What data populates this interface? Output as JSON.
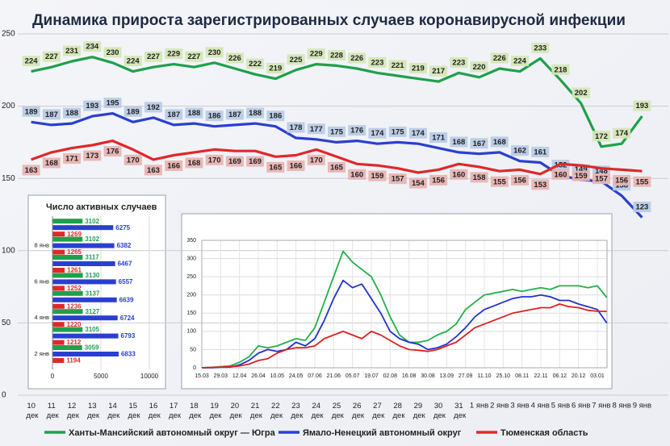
{
  "chart_data": [
    {
      "type": "line",
      "title": "Динамика прироста зарегистрированных случаев коронавирусной инфекции",
      "categories": [
        "10 дек",
        "11 дек",
        "12 дек",
        "13 дек",
        "14 дек",
        "15 дек",
        "16 дек",
        "17 дек",
        "18 дек",
        "19 дек",
        "20 дек",
        "21 дек",
        "22 дек",
        "23 дек",
        "24 дек",
        "25 дек",
        "26 дек",
        "27 дек",
        "28 дек",
        "29 дек",
        "30 дек",
        "31 дек",
        "1 янв",
        "2 янв",
        "3 янв",
        "4 янв",
        "5 янв",
        "6 янв",
        "7 янв",
        "8 янв",
        "9 янв"
      ],
      "series": [
        {
          "name": "Ханты-Мансийский автономный округ — Югра",
          "color": "#1fa04a",
          "label_color": "#d4e6b5",
          "values": [
            224,
            227,
            231,
            234,
            230,
            224,
            227,
            229,
            227,
            230,
            226,
            222,
            219,
            225,
            229,
            228,
            226,
            223,
            221,
            219,
            217,
            223,
            220,
            226,
            224,
            233,
            218,
            202,
            172,
            174,
            193
          ]
        },
        {
          "name": "Ямало-Ненецкий автономный округ",
          "color": "#2a3fd0",
          "label_color": "#b9cbe6",
          "values": [
            189,
            187,
            188,
            193,
            195,
            189,
            192,
            187,
            188,
            186,
            187,
            188,
            186,
            178,
            177,
            175,
            176,
            174,
            175,
            174,
            171,
            168,
            167,
            168,
            162,
            161,
            152,
            149,
            148,
            138,
            123
          ]
        },
        {
          "name": "Тюменская область",
          "color": "#e02828",
          "label_color": "#e8b4b2",
          "values": [
            163,
            168,
            171,
            173,
            176,
            170,
            163,
            166,
            168,
            170,
            169,
            169,
            165,
            166,
            170,
            165,
            160,
            159,
            157,
            154,
            156,
            160,
            158,
            155,
            156,
            153,
            160,
            159,
            157,
            156,
            155
          ]
        }
      ],
      "ylim": [
        0,
        250
      ],
      "yticks": [
        0,
        50,
        100,
        150,
        200,
        250
      ],
      "grid": true
    },
    {
      "type": "bar",
      "orientation": "horizontal",
      "title": "Число активных случаев",
      "categories": [
        "2 янв",
        null,
        "4 янв",
        null,
        "6 янв",
        null,
        "8 янв",
        null
      ],
      "series": [
        {
          "color": "#1fa04a",
          "values": [
            3059,
            3105,
            3127,
            3137,
            3130,
            3117,
            3102,
            3102
          ]
        },
        {
          "color": "#2a3fd0",
          "values": [
            6833,
            6793,
            6724,
            6639,
            6557,
            6467,
            6382,
            6275
          ]
        },
        {
          "color": "#e02828",
          "values": [
            1194,
            1212,
            1220,
            1236,
            1252,
            1261,
            1265,
            1269
          ]
        }
      ],
      "xlim": [
        0,
        10000
      ],
      "xticks": [
        0,
        5000,
        10000
      ],
      "grid": true
    },
    {
      "type": "line",
      "categories": [
        "15.03",
        null,
        "29.03",
        null,
        "12.04",
        null,
        "26.04",
        null,
        "10.05",
        null,
        "24.05",
        null,
        "07.06",
        null,
        "21.06",
        null,
        "05.07",
        null,
        "19.07",
        null,
        "02.08",
        null,
        "16.08",
        null,
        "30.08",
        null,
        "13.09",
        null,
        "27.09",
        null,
        "11.10",
        null,
        "25.10",
        null,
        "08.11",
        null,
        "22.11",
        null,
        "06.12",
        null,
        "20.12",
        null,
        "03.01",
        null
      ],
      "series": [
        {
          "color": "#22b04a",
          "values": [
            0,
            1,
            3,
            5,
            15,
            30,
            60,
            55,
            60,
            70,
            80,
            75,
            110,
            180,
            250,
            320,
            290,
            270,
            250,
            200,
            140,
            90,
            70,
            70,
            75,
            90,
            100,
            120,
            160,
            180,
            200,
            205,
            210,
            215,
            210,
            215,
            220,
            215,
            225,
            225,
            225,
            220,
            225,
            193
          ]
        },
        {
          "color": "#2233cc",
          "values": [
            0,
            0,
            1,
            2,
            8,
            20,
            40,
            50,
            45,
            50,
            70,
            60,
            80,
            130,
            190,
            240,
            220,
            230,
            190,
            150,
            100,
            80,
            70,
            65,
            50,
            55,
            65,
            85,
            110,
            140,
            160,
            170,
            180,
            190,
            195,
            195,
            200,
            195,
            185,
            185,
            175,
            168,
            160,
            123
          ]
        },
        {
          "color": "#dd2222",
          "values": [
            0,
            1,
            2,
            3,
            5,
            10,
            20,
            25,
            40,
            50,
            55,
            55,
            60,
            80,
            90,
            100,
            90,
            80,
            100,
            90,
            75,
            60,
            50,
            48,
            45,
            50,
            60,
            70,
            90,
            110,
            120,
            130,
            140,
            150,
            155,
            160,
            165,
            165,
            175,
            168,
            165,
            158,
            155,
            155
          ]
        }
      ],
      "ylim": [
        0,
        350
      ],
      "yticks": [
        0,
        50,
        100,
        150,
        200,
        250,
        300,
        350
      ],
      "grid": true
    }
  ]
}
